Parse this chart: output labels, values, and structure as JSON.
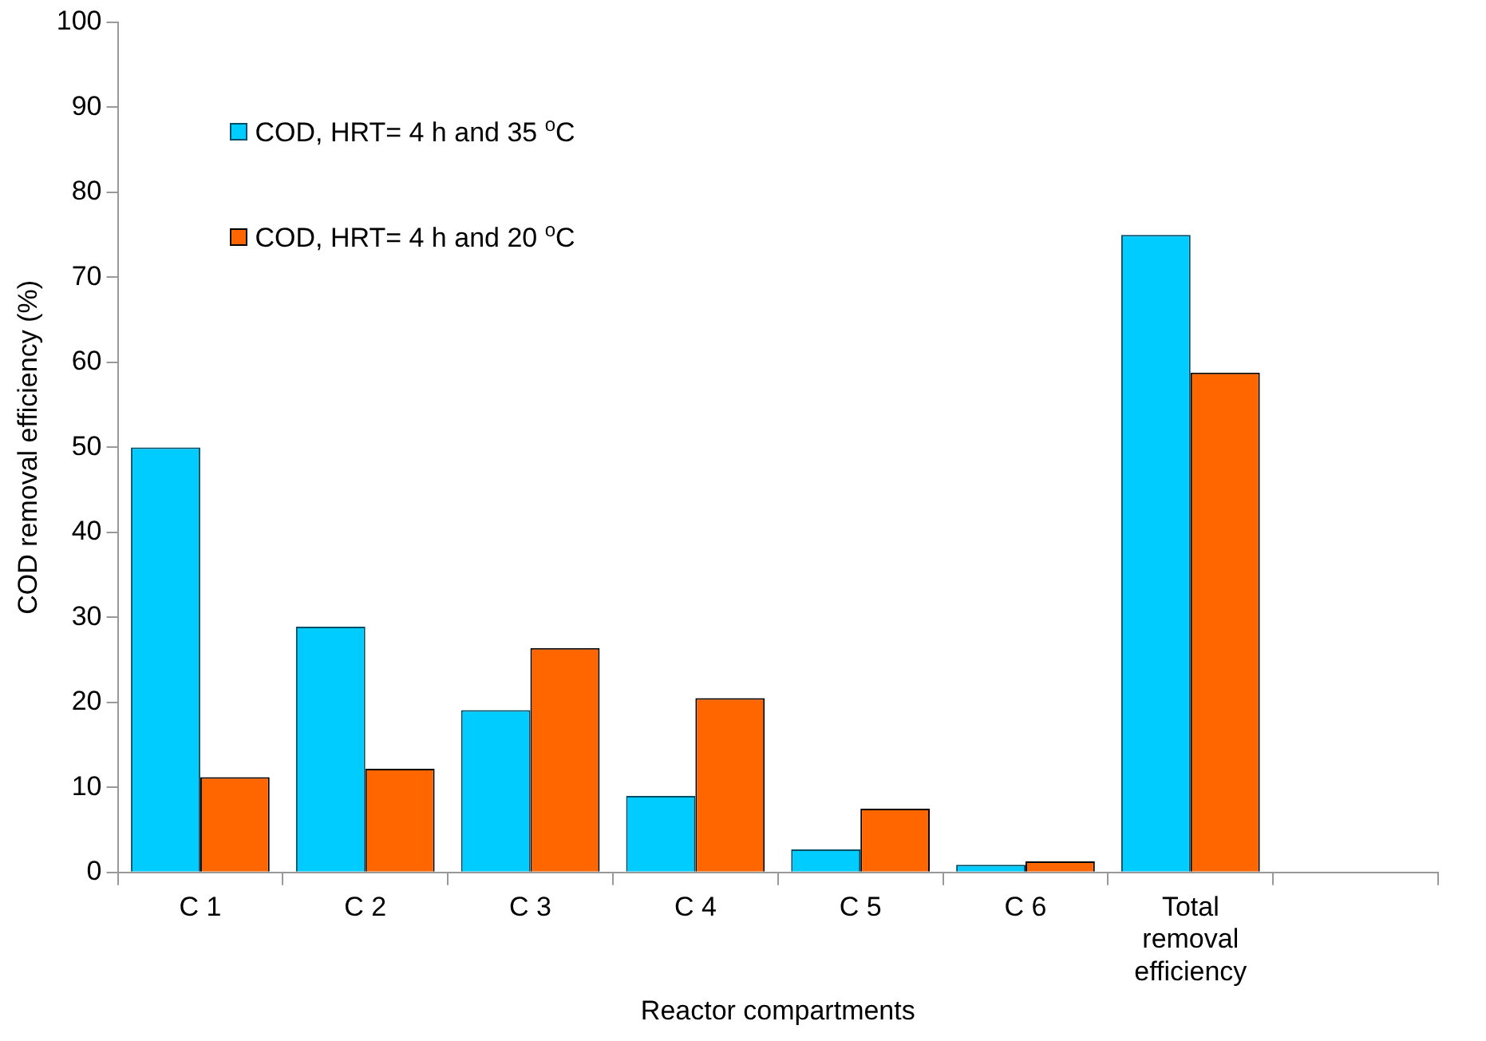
{
  "chart_data": {
    "type": "bar",
    "xlabel": "Reactor compartments",
    "ylabel": "COD removal efficiency (%)",
    "categories": [
      "C 1",
      "C 2",
      "C 3",
      "C 4",
      "C 5",
      "C 6",
      "Total removal efficiency",
      null
    ],
    "series": [
      {
        "name": "COD, HRT= 4 h and 35 $^{o}$C",
        "color": "#00ccff",
        "values": [
          50,
          28.9,
          19.1,
          9.0,
          2.7,
          0.9,
          75,
          null
        ]
      },
      {
        "name": "COD, HRT= 4 h and 20 $^{o}$C",
        "color": "#ff6600",
        "values": [
          11.2,
          12.2,
          26.4,
          20.5,
          7.5,
          1.3,
          58.8,
          null
        ]
      }
    ],
    "ylim": [
      0,
      100
    ],
    "yticks": [
      0,
      10,
      20,
      30,
      40,
      50,
      60,
      70,
      80,
      90,
      100
    ],
    "grid": false,
    "legend": "top left"
  }
}
